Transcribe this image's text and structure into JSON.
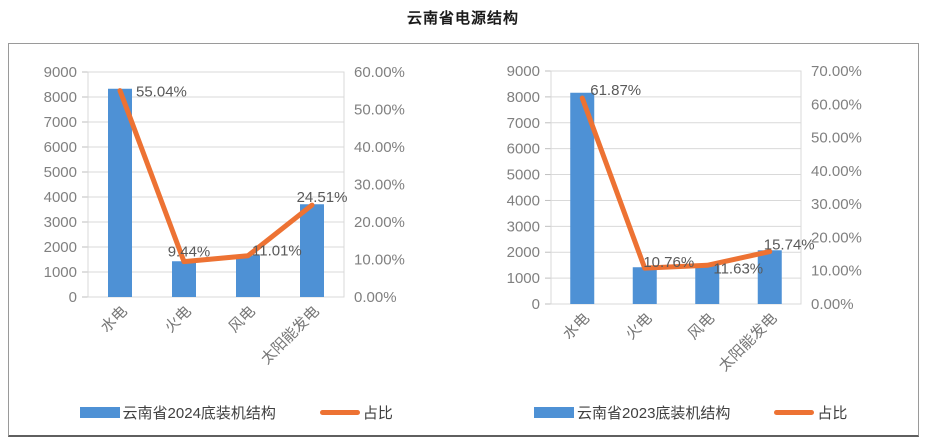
{
  "title": "云南省电源结构",
  "chart_data": [
    {
      "type": "combo-bar-line",
      "categories": [
        "水电",
        "火电",
        "风电",
        "太阳能发电"
      ],
      "series": [
        {
          "name": "云南省2024底装机结构",
          "type": "bar",
          "axis": "left",
          "values": [
            8330,
            1430,
            1665,
            3710
          ]
        },
        {
          "name": "占比",
          "type": "line",
          "axis": "right",
          "values": [
            55.04,
            9.44,
            11.01,
            24.51
          ]
        }
      ],
      "point_labels": [
        "55.04%",
        "9.44%",
        "11.01%",
        "24.51%"
      ],
      "left_axis": {
        "min": 0,
        "max": 9000,
        "step": 1000,
        "tick_labels": [
          "9000",
          "8000",
          "7000",
          "6000",
          "5000",
          "4000",
          "3000",
          "2000",
          "1000",
          "0"
        ]
      },
      "right_axis": {
        "min": 0,
        "max": 60,
        "step": 10,
        "tick_labels": [
          "60.00%",
          "50.00%",
          "40.00%",
          "30.00%",
          "20.00%",
          "10.00%",
          "0.00%"
        ]
      },
      "grid": true,
      "legend_position": "bottom",
      "colors": {
        "bar": "#4E91D5",
        "line": "#ED7233"
      }
    },
    {
      "type": "combo-bar-line",
      "categories": [
        "水电",
        "火电",
        "风电",
        "太阳能发电"
      ],
      "series": [
        {
          "name": "云南省2023底装机结构",
          "type": "bar",
          "axis": "left",
          "values": [
            8160,
            1420,
            1535,
            2075
          ]
        },
        {
          "name": "占比",
          "type": "line",
          "axis": "right",
          "values": [
            61.87,
            10.76,
            11.63,
            15.74
          ]
        }
      ],
      "point_labels": [
        "61.87%",
        "10.76%",
        "11.63%",
        "15.74%"
      ],
      "left_axis": {
        "min": 0,
        "max": 9000,
        "step": 1000,
        "tick_labels": [
          "9000",
          "8000",
          "7000",
          "6000",
          "5000",
          "4000",
          "3000",
          "2000",
          "1000",
          "0"
        ]
      },
      "right_axis": {
        "min": 0,
        "max": 70,
        "step": 10,
        "tick_labels": [
          "70.00%",
          "60.00%",
          "50.00%",
          "40.00%",
          "30.00%",
          "20.00%",
          "10.00%",
          "0.00%"
        ]
      },
      "grid": true,
      "legend_position": "bottom",
      "colors": {
        "bar": "#4E91D5",
        "line": "#ED7233"
      }
    }
  ]
}
